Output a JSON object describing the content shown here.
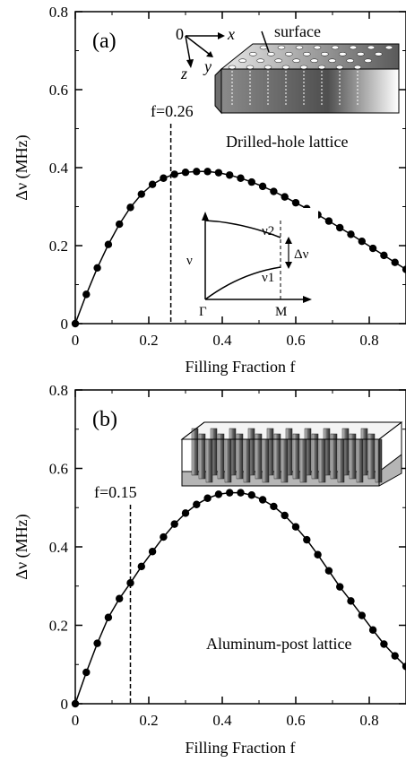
{
  "chart_data": [
    {
      "type": "scatter",
      "panel_label": "(a)",
      "xlabel": "Filling Fraction f",
      "ylabel": "Δν (MHz)",
      "xlim": [
        0,
        0.9
      ],
      "ylim": [
        0,
        0.8
      ],
      "x_ticks": [
        "0",
        "0.2",
        "0.4",
        "0.6",
        "0.8"
      ],
      "y_ticks": [
        "0",
        "0.2",
        "0.4",
        "0.6",
        "0.8"
      ],
      "vline": {
        "x": 0.26,
        "label": "f=0.26"
      },
      "annotation": "Drilled-hole lattice",
      "inset_schematic": {
        "labels": [
          "0",
          "x",
          "y",
          "z",
          "surface"
        ]
      },
      "inset_band": {
        "labels": [
          "ν",
          "ν2",
          "ν1",
          "Δν",
          "Γ",
          "M"
        ]
      },
      "series": [
        {
          "x": [
            0,
            0.03,
            0.06,
            0.09,
            0.12,
            0.15,
            0.18,
            0.21,
            0.24,
            0.27,
            0.3,
            0.33,
            0.36,
            0.39,
            0.42,
            0.45,
            0.48,
            0.51,
            0.54,
            0.57,
            0.6,
            0.63,
            0.66,
            0.69,
            0.72,
            0.75,
            0.78,
            0.81,
            0.84,
            0.87,
            0.9
          ],
          "y": [
            0,
            0.075,
            0.143,
            0.203,
            0.255,
            0.298,
            0.332,
            0.357,
            0.373,
            0.383,
            0.388,
            0.39,
            0.39,
            0.387,
            0.381,
            0.373,
            0.363,
            0.352,
            0.339,
            0.325,
            0.31,
            0.295,
            0.279,
            0.263,
            0.246,
            0.229,
            0.211,
            0.193,
            0.175,
            0.157,
            0.139
          ]
        }
      ]
    },
    {
      "type": "scatter",
      "panel_label": "(b)",
      "xlabel": "Filling Fraction f",
      "ylabel": "Δν (MHz)",
      "xlim": [
        0,
        0.9
      ],
      "ylim": [
        0,
        0.8
      ],
      "x_ticks": [
        "0",
        "0.2",
        "0.4",
        "0.6",
        "0.8"
      ],
      "y_ticks": [
        "0",
        "0.2",
        "0.4",
        "0.6",
        "0.8"
      ],
      "vline": {
        "x": 0.15,
        "label": "f=0.15"
      },
      "annotation": "Aluminum-post lattice",
      "series": [
        {
          "x": [
            0,
            0.03,
            0.06,
            0.09,
            0.12,
            0.15,
            0.18,
            0.21,
            0.24,
            0.27,
            0.3,
            0.33,
            0.36,
            0.39,
            0.42,
            0.45,
            0.48,
            0.51,
            0.54,
            0.57,
            0.6,
            0.63,
            0.66,
            0.69,
            0.72,
            0.75,
            0.78,
            0.81,
            0.84,
            0.87,
            0.9
          ],
          "y": [
            0,
            0.08,
            0.154,
            0.22,
            0.268,
            0.308,
            0.35,
            0.388,
            0.425,
            0.458,
            0.486,
            0.508,
            0.524,
            0.534,
            0.538,
            0.538,
            0.532,
            0.52,
            0.503,
            0.48,
            0.451,
            0.418,
            0.38,
            0.339,
            0.298,
            0.262,
            0.225,
            0.188,
            0.152,
            0.122,
            0.095
          ]
        }
      ]
    }
  ]
}
